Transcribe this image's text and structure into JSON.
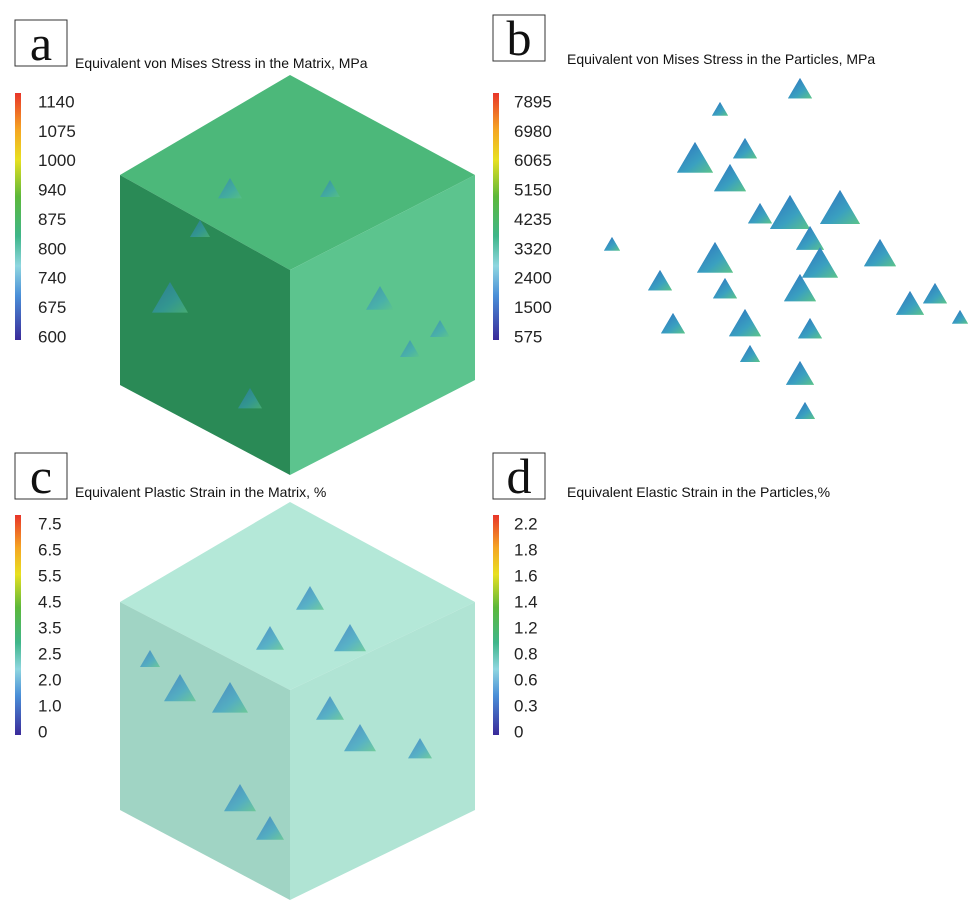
{
  "panels": [
    {
      "letter": "a",
      "title": "Equivalent von Mises Stress in the Matrix, MPa",
      "legend": [
        "1140",
        "1075",
        "1000",
        "940",
        "875",
        "800",
        "740",
        "675",
        "600"
      ]
    },
    {
      "letter": "b",
      "title": "Equivalent von Mises Stress in the Particles, MPa",
      "legend": [
        "7895",
        "6980",
        "6065",
        "5150",
        "4235",
        "3320",
        "2400",
        "1500",
        "575"
      ]
    },
    {
      "letter": "c",
      "title": "Equivalent Plastic Strain in the Matrix, %",
      "legend": [
        "7.5",
        "6.5",
        "5.5",
        "4.5",
        "3.5",
        "2.5",
        "2.0",
        "1.0",
        "0"
      ]
    },
    {
      "letter": "d",
      "title": "Equivalent Elastic Strain in the Particles,%",
      "legend": [
        "2.2",
        "1.8",
        "1.6",
        "1.4",
        "1.2",
        "0.8",
        "0.6",
        "0.3",
        "0"
      ]
    }
  ]
}
